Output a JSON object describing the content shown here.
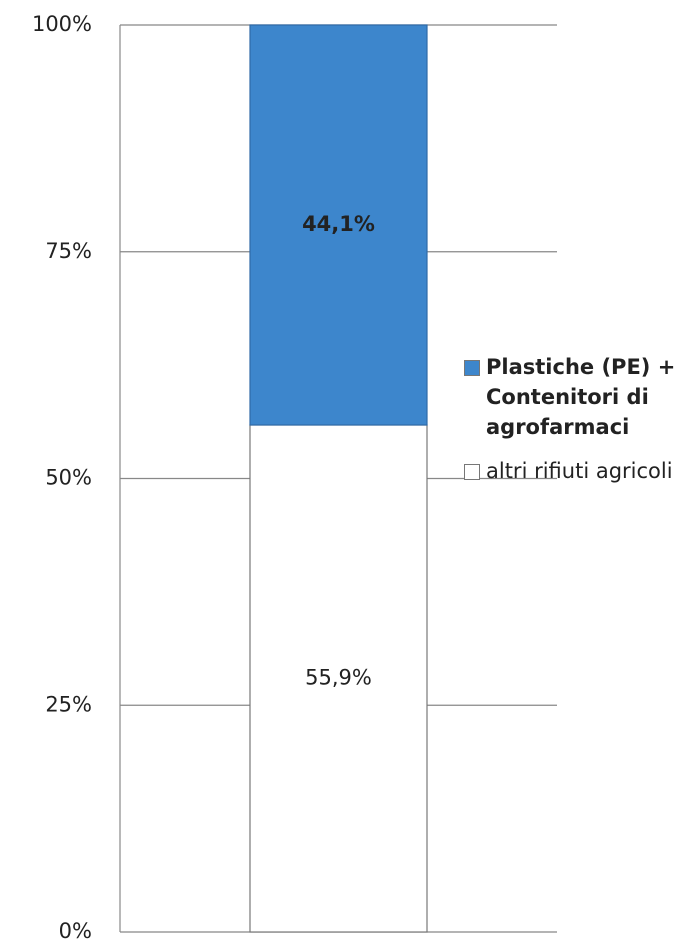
{
  "chart_data": {
    "type": "bar",
    "stacked": true,
    "categories": [
      null
    ],
    "series": [
      {
        "name": "altri rifiuti agricoli",
        "color": "#ffffff",
        "values": [
          55.9
        ],
        "value_labels": [
          "55,9%"
        ]
      },
      {
        "name": "Plastiche (PE) + Contenitori di agrofarmaci",
        "color": "#3d86cc",
        "values": [
          44.1
        ],
        "value_labels": [
          "44,1%"
        ]
      }
    ],
    "ylim": [
      0,
      100
    ],
    "yticks": [
      {
        "value": 0,
        "label": "0%"
      },
      {
        "value": 25,
        "label": "25%"
      },
      {
        "value": 50,
        "label": "50%"
      },
      {
        "value": 75,
        "label": "75%"
      },
      {
        "value": 100,
        "label": "100%"
      }
    ],
    "grid": true,
    "legend": "right"
  }
}
